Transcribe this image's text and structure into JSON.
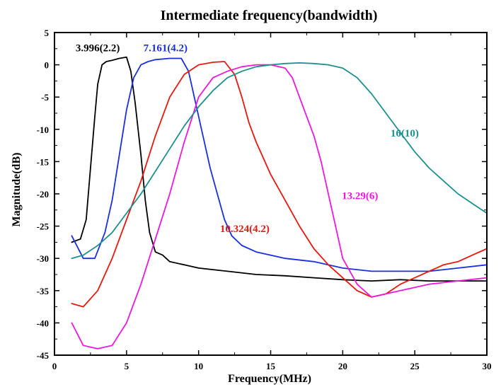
{
  "chart_data": {
    "type": "line",
    "title": "Intermediate frequency(bandwidth)",
    "xlabel": "Frequency(MHz)",
    "ylabel": "Magnitude(dB)",
    "xlim": [
      0,
      30
    ],
    "ylim": [
      -45,
      5
    ],
    "xticks": [
      "0",
      "5",
      "10",
      "15",
      "20",
      "25",
      "30"
    ],
    "yticks": [
      "5",
      "0",
      "-5",
      "-10",
      "-15",
      "-20",
      "-25",
      "-30",
      "-35",
      "-40",
      "-45"
    ],
    "grid": false,
    "series": [
      {
        "name": "3.996(2.2)",
        "color": "#000000",
        "x": [
          1.2,
          1.8,
          2.2,
          2.5,
          2.8,
          3.0,
          3.3,
          3.6,
          4.0,
          4.5,
          5.0,
          5.3,
          5.6,
          6.0,
          6.3,
          6.6,
          7.0,
          7.5,
          8.0,
          9.0,
          10,
          12,
          14,
          16,
          18,
          20,
          22,
          24,
          26,
          28,
          30
        ],
        "y": [
          -27.5,
          -27,
          -24,
          -16,
          -8,
          -3,
          0,
          0.5,
          0.7,
          1.0,
          1.2,
          -1,
          -6,
          -14,
          -21,
          -26,
          -29,
          -29.5,
          -30.5,
          -31,
          -31.5,
          -32,
          -32.5,
          -32.7,
          -33,
          -33.3,
          -33.5,
          -33.3,
          -33.5,
          -33.5,
          -33.5
        ]
      },
      {
        "name": "7.161(4.2)",
        "color": "#1a2fe0",
        "x": [
          1.2,
          2.0,
          2.8,
          3.5,
          4.0,
          4.5,
          5.0,
          5.5,
          6.0,
          6.5,
          7.0,
          8.0,
          8.8,
          9.3,
          9.8,
          10.3,
          10.8,
          11.3,
          11.8,
          12.3,
          13.0,
          14,
          16,
          18,
          20,
          22,
          24,
          26,
          28,
          30
        ],
        "y": [
          -26.5,
          -30,
          -30,
          -26,
          -21,
          -14,
          -7,
          -2,
          0,
          0.5,
          0.8,
          1.0,
          1.0,
          -1,
          -6,
          -11,
          -16,
          -20,
          -24,
          -26.5,
          -28,
          -29,
          -30,
          -30.5,
          -31.5,
          -32,
          -32,
          -32,
          -31.5,
          -31
        ]
      },
      {
        "name": "10.324(4.2)",
        "color": "#e8180e",
        "x": [
          1.2,
          2.0,
          3.0,
          4.0,
          5.0,
          6.0,
          7.0,
          8.0,
          9.0,
          10.0,
          11.0,
          11.8,
          12.5,
          13.0,
          13.5,
          14.0,
          15.0,
          16.0,
          17.0,
          18.0,
          19.0,
          20.0,
          21.0,
          22.0,
          23.0,
          24.0,
          25.0,
          26.0,
          27.0,
          28.0,
          29.0,
          30.0
        ],
        "y": [
          -37,
          -37.5,
          -35,
          -30,
          -24,
          -18,
          -11,
          -5,
          -1.5,
          0,
          0.4,
          0.5,
          -1.5,
          -5,
          -9,
          -12,
          -17,
          -21,
          -25,
          -28.5,
          -31,
          -33,
          -35,
          -36,
          -35.5,
          -34,
          -33,
          -32,
          -31,
          -30.5,
          -29.5,
          -28.5
        ]
      },
      {
        "name": "13.29(6)",
        "color": "#ee18dc",
        "x": [
          1.2,
          2.0,
          3.0,
          4.0,
          5.0,
          6.0,
          7.0,
          8.0,
          9.0,
          10.0,
          11.0,
          12.0,
          13.0,
          14.0,
          15.0,
          16.0,
          16.5,
          17.0,
          17.5,
          18.0,
          18.5,
          19.0,
          19.5,
          20.0,
          21.0,
          22.0,
          23.0,
          24.0,
          26.0,
          28.0,
          30.0
        ],
        "y": [
          -40,
          -43.5,
          -44,
          -43.5,
          -40,
          -34,
          -27,
          -20,
          -12,
          -5,
          -2,
          -1,
          -0.3,
          0,
          0,
          -0.5,
          -2,
          -5,
          -8,
          -11,
          -15,
          -20,
          -25,
          -30,
          -34,
          -36,
          -35.5,
          -35,
          -34,
          -33.5,
          -33
        ]
      },
      {
        "name": "16(10)",
        "color": "#1e8f8f",
        "x": [
          1.2,
          2.0,
          3.0,
          4.0,
          5.0,
          6.0,
          7.0,
          8.0,
          9.0,
          10.0,
          11.0,
          12.0,
          13.0,
          14.0,
          15.0,
          16.0,
          17.0,
          18.0,
          19.0,
          20.0,
          21.0,
          22.0,
          23.0,
          24.0,
          25.0,
          26.0,
          27.0,
          28.0,
          29.0,
          30.0
        ],
        "y": [
          -30,
          -29.5,
          -28,
          -26,
          -23,
          -20,
          -16.5,
          -13,
          -9.5,
          -6.5,
          -4,
          -2,
          -1,
          -0.3,
          0,
          0.2,
          0.3,
          0.2,
          0,
          -0.5,
          -2,
          -4.5,
          -7.5,
          -10.5,
          -13.5,
          -16,
          -18,
          -20,
          -21.5,
          -23
        ]
      }
    ],
    "annotations": [
      {
        "text": "3.996(2.2)",
        "color": "#000000",
        "x": 3.0,
        "y": 2.1
      },
      {
        "text": "7.161(4.2)",
        "color": "#1a2fe0",
        "x": 7.7,
        "y": 2.1
      },
      {
        "text": "16(10)",
        "color": "#1e8f8f",
        "x": 24.3,
        "y": -11.1
      },
      {
        "text": "13.29(6)",
        "color": "#ee18dc",
        "x": 21.2,
        "y": -20.8
      },
      {
        "text": "10.324(4.2)",
        "color": "#e8180e",
        "x": 13.2,
        "y": -25.9
      }
    ]
  }
}
